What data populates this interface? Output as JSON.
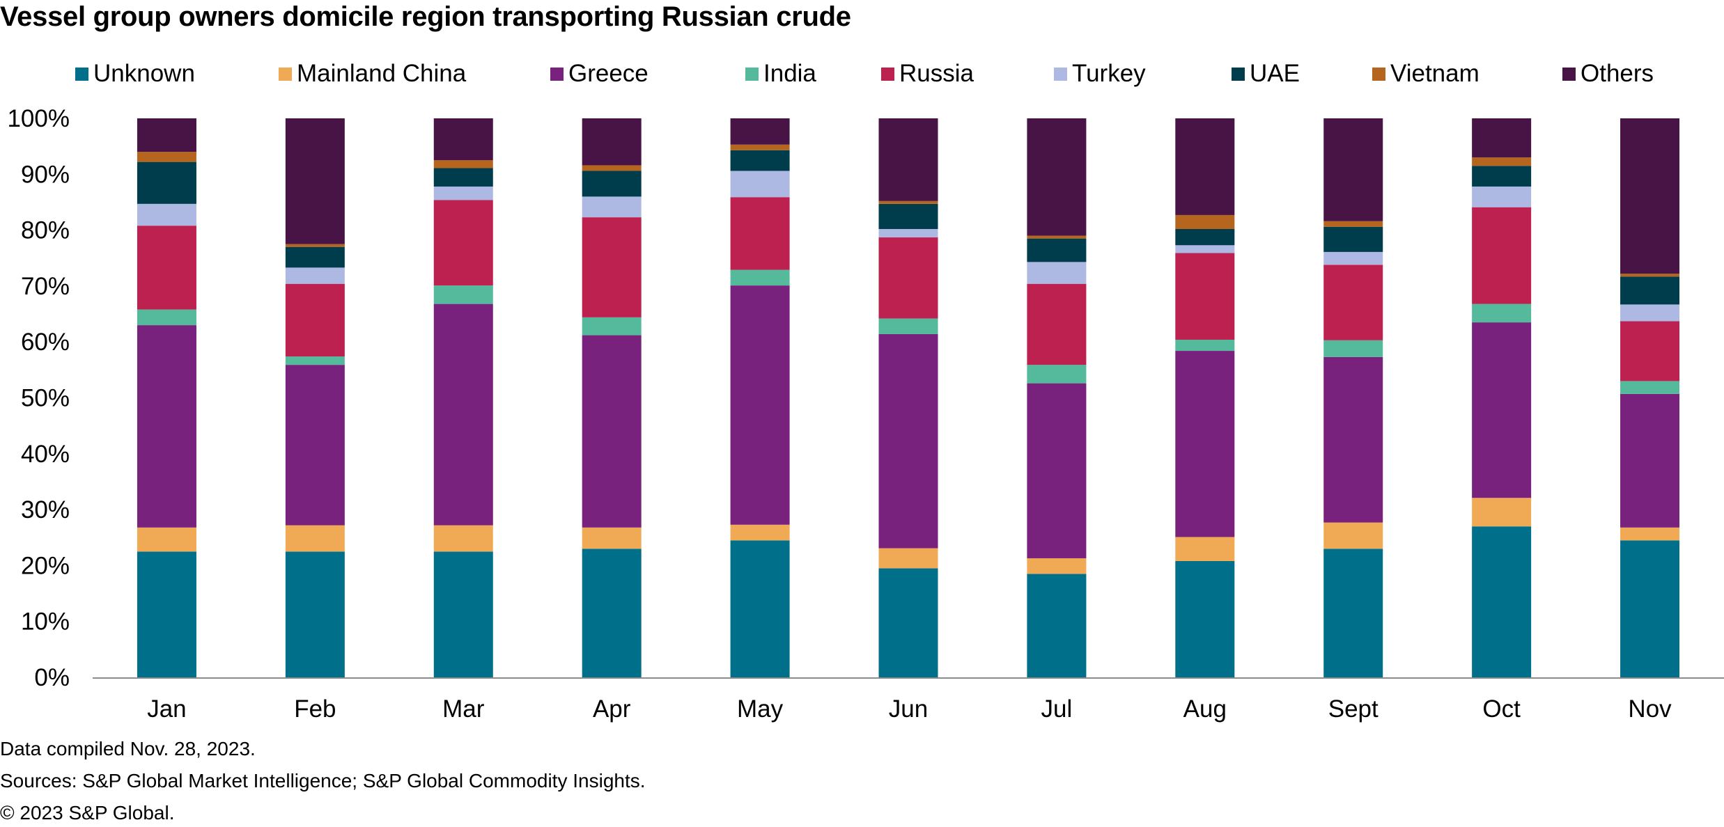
{
  "chart_data": {
    "type": "bar",
    "stacked": true,
    "title": "Vessel group owners domicile region transporting Russian crude",
    "xlabel": "",
    "ylabel": "",
    "ylim": [
      0,
      100
    ],
    "y_ticks": [
      "0%",
      "10%",
      "20%",
      "30%",
      "40%",
      "50%",
      "60%",
      "70%",
      "80%",
      "90%",
      "100%"
    ],
    "categories": [
      "Jan",
      "Feb",
      "Mar",
      "Apr",
      "May",
      "Jun",
      "Jul",
      "Aug",
      "Sept",
      "Oct",
      "Nov"
    ],
    "legend_position": "top",
    "series": [
      {
        "name": "Unknown",
        "color": "#006f8a",
        "values": [
          22.5,
          22.5,
          22.5,
          23,
          24.5,
          19.5,
          18.5,
          20.8,
          23,
          27,
          24.5
        ]
      },
      {
        "name": "Mainland China",
        "color": "#f0aa55",
        "values": [
          4.3,
          4.7,
          4.7,
          3.8,
          2.8,
          3.6,
          2.8,
          4.3,
          4.7,
          5.1,
          2.3
        ]
      },
      {
        "name": "Greece",
        "color": "#78217d",
        "values": [
          36.2,
          28.7,
          39.6,
          34.4,
          42.8,
          38.3,
          31.3,
          33.3,
          29.6,
          31.4,
          23.9
        ]
      },
      {
        "name": "India",
        "color": "#55b99c",
        "values": [
          2.8,
          1.5,
          3.3,
          3.2,
          2.8,
          2.8,
          3.3,
          2,
          3,
          3.3,
          2.3
        ]
      },
      {
        "name": "Russia",
        "color": "#bc2150",
        "values": [
          15,
          13,
          15.3,
          17.9,
          13,
          14.5,
          14.5,
          15.5,
          13.5,
          17.3,
          10.7
        ]
      },
      {
        "name": "Turkey",
        "color": "#adb9e3",
        "values": [
          3.9,
          2.9,
          2.4,
          3.7,
          4.7,
          1.5,
          3.9,
          1.4,
          2.3,
          3.7,
          3
        ]
      },
      {
        "name": "UAE",
        "color": "#003d4c",
        "values": [
          7.5,
          3.7,
          3.3,
          4.6,
          3.7,
          4.5,
          4.2,
          2.9,
          4.5,
          3.7,
          5
        ]
      },
      {
        "name": "Vietnam",
        "color": "#b5651d",
        "values": [
          1.8,
          0.5,
          1.4,
          1,
          1,
          0.5,
          0.5,
          2.5,
          1,
          1.5,
          0.5
        ]
      },
      {
        "name": "Others",
        "color": "#481345",
        "values": [
          6,
          22.5,
          7.5,
          8.4,
          4.7,
          14.8,
          21,
          17.3,
          18.4,
          7,
          27.8
        ]
      }
    ]
  },
  "footnotes": {
    "line1": "Data compiled Nov. 28, 2023.",
    "line2": "Sources: S&P Global Market Intelligence; S&P Global Commodity Insights.",
    "line3": "© 2023 S&P Global."
  }
}
